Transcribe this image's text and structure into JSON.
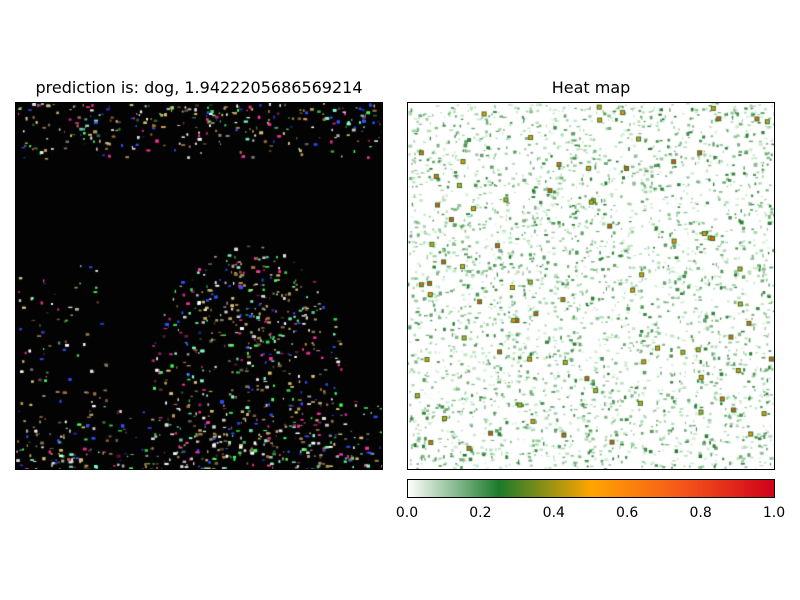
{
  "left_panel": {
    "title": "prediction is: dog, 1.9422205686569214",
    "image_description_icon": "noisy-cat-image"
  },
  "right_panel": {
    "title": "Heat map"
  },
  "colorbar": {
    "ticks": [
      "0.0",
      "0.2",
      "0.4",
      "0.6",
      "0.8",
      "1.0"
    ],
    "range": [
      0.0,
      1.0
    ],
    "colors": [
      "#ffffff",
      "#1b7a2a",
      "#ffa500",
      "#f5561a",
      "#d0001a"
    ]
  },
  "chart_data": {
    "type": "heatmap",
    "title": "Heat map",
    "value_range": [
      0.0,
      1.0
    ],
    "colormap_stops": [
      {
        "value": 0.0,
        "color": "#ffffff"
      },
      {
        "value": 0.25,
        "color": "#1b7a2a"
      },
      {
        "value": 0.5,
        "color": "#ffa500"
      },
      {
        "value": 0.75,
        "color": "#f5561a"
      },
      {
        "value": 1.0,
        "color": "#d0001a"
      }
    ]
  }
}
